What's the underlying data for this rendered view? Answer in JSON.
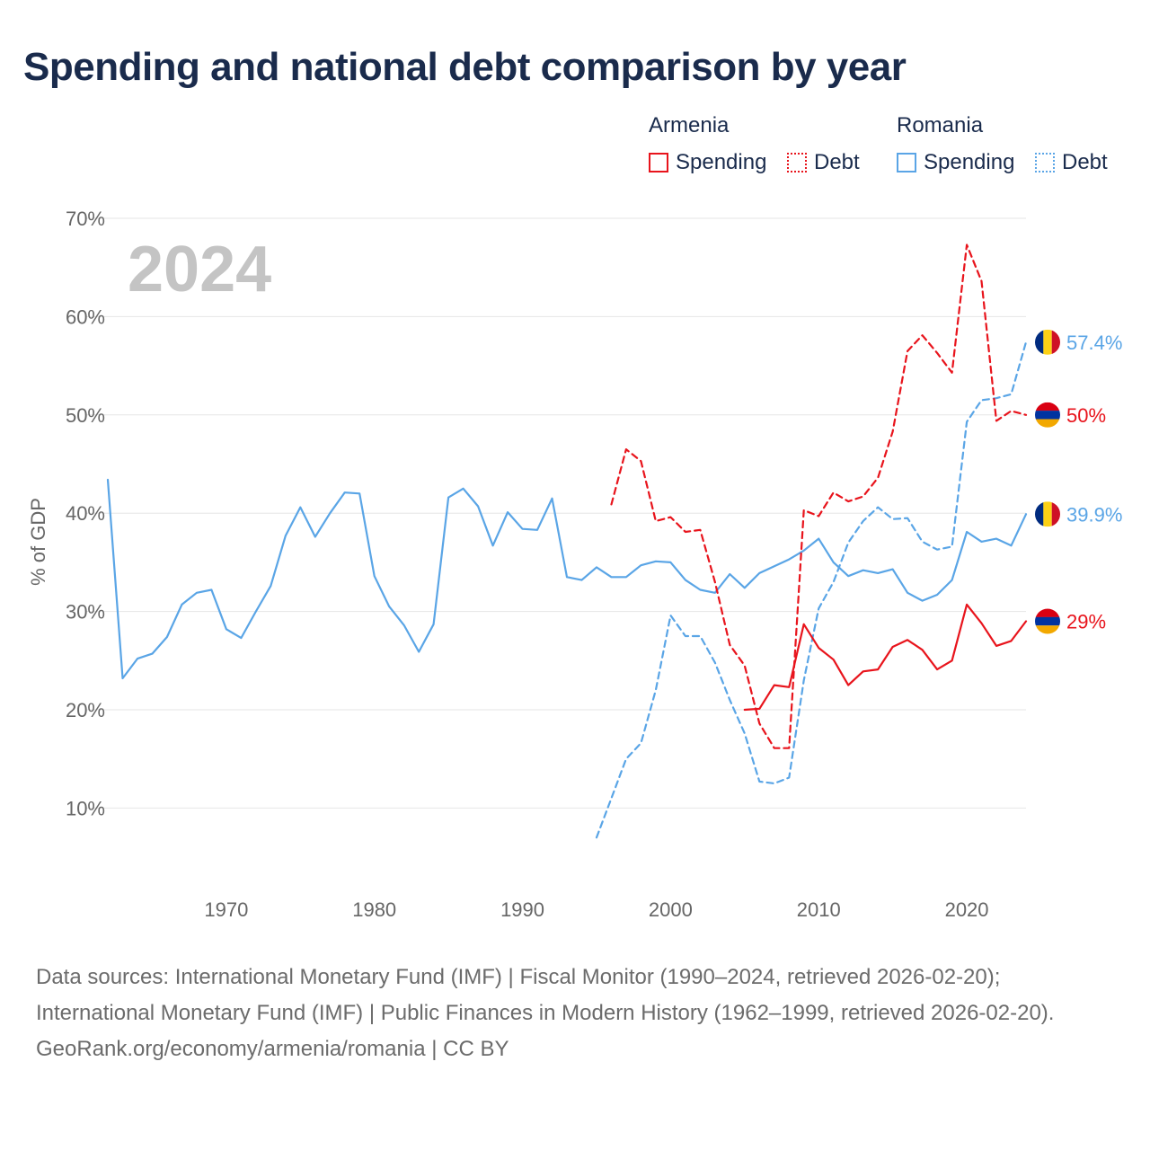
{
  "title": "Spending and national debt comparison by year",
  "legend": {
    "armenia": {
      "title": "Armenia",
      "spending": "Spending",
      "debt": "Debt"
    },
    "romania": {
      "title": "Romania",
      "spending": "Spending",
      "debt": "Debt"
    }
  },
  "footer": {
    "sources": "Data sources: International Monetary Fund (IMF) | Fiscal Monitor (1990–2024, retrieved 2026-02-20); International Monetary Fund (IMF) | Public Finances in Modern History (1962–1999, retrieved 2026-02-20).",
    "credit": "GeoRank.org/economy/armenia/romania | CC BY"
  },
  "colors": {
    "armenia": "#e8141c",
    "romania": "#5aa5e6",
    "grid": "#e6e6e6",
    "axis_text": "#666666",
    "year_watermark": "#c4c4c4"
  },
  "chart_data": {
    "type": "line",
    "title": "Spending and national debt comparison by year",
    "year_label": "2024",
    "ylabel": "% of GDP",
    "xlabel": "",
    "xlim": [
      1962,
      2024
    ],
    "ylim": [
      3,
      72
    ],
    "y_ticks": [
      10,
      20,
      30,
      40,
      50,
      60,
      70
    ],
    "y_tick_labels": [
      "10%",
      "20%",
      "30%",
      "40%",
      "50%",
      "60%",
      "70%"
    ],
    "x_ticks": [
      1970,
      1980,
      1990,
      2000,
      2010,
      2020
    ],
    "x_tick_labels": [
      "1970",
      "1980",
      "1990",
      "2000",
      "2010",
      "2020"
    ],
    "grid": true,
    "series": [
      {
        "name": "Romania Spending",
        "country": "romania",
        "style": "solid",
        "end_label": "39.9%",
        "x": [
          1962,
          1963,
          1964,
          1965,
          1966,
          1967,
          1968,
          1969,
          1970,
          1971,
          1972,
          1973,
          1974,
          1975,
          1976,
          1977,
          1978,
          1979,
          1980,
          1981,
          1982,
          1983,
          1984,
          1985,
          1986,
          1987,
          1988,
          1989,
          1990,
          1991,
          1992,
          1993,
          1994,
          1995,
          1996,
          1997,
          1998,
          1999,
          2000,
          2001,
          2002,
          2003,
          2004,
          2005,
          2006,
          2007,
          2008,
          2009,
          2010,
          2011,
          2012,
          2013,
          2014,
          2015,
          2016,
          2017,
          2018,
          2019,
          2020,
          2021,
          2022,
          2023,
          2024
        ],
        "values": [
          43.4,
          23.2,
          25.2,
          25.7,
          27.4,
          30.7,
          31.9,
          32.2,
          28.2,
          27.3,
          30.0,
          32.6,
          37.7,
          40.6,
          37.6,
          40.0,
          42.1,
          42.0,
          33.6,
          30.5,
          28.6,
          25.9,
          28.7,
          41.6,
          42.5,
          40.7,
          36.7,
          40.1,
          38.4,
          38.3,
          41.5,
          33.5,
          33.2,
          34.5,
          33.5,
          33.5,
          34.7,
          35.1,
          35.0,
          33.2,
          32.2,
          31.9,
          33.8,
          32.4,
          33.9,
          34.6,
          35.3,
          36.2,
          37.4,
          35.0,
          33.6,
          34.2,
          33.9,
          34.3,
          31.9,
          31.1,
          31.7,
          33.2,
          38.1,
          37.1,
          37.4,
          36.7,
          39.9
        ]
      },
      {
        "name": "Romania Debt",
        "country": "romania",
        "style": "dashed",
        "end_label": "57.4%",
        "x": [
          1995,
          1996,
          1997,
          1998,
          1999,
          2000,
          2001,
          2002,
          2003,
          2004,
          2005,
          2006,
          2007,
          2008,
          2009,
          2010,
          2011,
          2012,
          2013,
          2014,
          2015,
          2016,
          2017,
          2018,
          2019,
          2020,
          2021,
          2022,
          2023,
          2024
        ],
        "values": [
          7.0,
          11.0,
          15.0,
          16.6,
          22.0,
          29.6,
          27.5,
          27.5,
          24.8,
          21.0,
          17.6,
          12.7,
          12.5,
          13.1,
          23.0,
          30.3,
          33.0,
          37.0,
          39.2,
          40.6,
          39.4,
          39.5,
          37.1,
          36.3,
          36.6,
          49.3,
          51.5,
          51.7,
          52.1,
          57.4
        ]
      },
      {
        "name": "Armenia Spending",
        "country": "armenia",
        "style": "solid",
        "end_label": "29%",
        "x": [
          2005,
          2006,
          2007,
          2008,
          2009,
          2010,
          2011,
          2012,
          2013,
          2014,
          2015,
          2016,
          2017,
          2018,
          2019,
          2020,
          2021,
          2022,
          2023,
          2024
        ],
        "values": [
          20.0,
          20.1,
          22.5,
          22.3,
          28.7,
          26.3,
          25.1,
          22.5,
          23.9,
          24.1,
          26.4,
          27.1,
          26.1,
          24.1,
          25.0,
          30.7,
          28.8,
          26.5,
          27.0,
          29.0
        ]
      },
      {
        "name": "Armenia Debt",
        "country": "armenia",
        "style": "dashed",
        "end_label": "50%",
        "x": [
          1996,
          1997,
          1998,
          1999,
          2000,
          2001,
          2002,
          2003,
          2004,
          2005,
          2006,
          2007,
          2008,
          2009,
          2010,
          2011,
          2012,
          2013,
          2014,
          2015,
          2016,
          2017,
          2018,
          2019,
          2020,
          2021,
          2022,
          2023,
          2024
        ],
        "values": [
          40.9,
          46.5,
          45.3,
          39.2,
          39.6,
          38.1,
          38.3,
          33.0,
          26.6,
          24.5,
          18.6,
          16.1,
          16.1,
          40.3,
          39.7,
          42.1,
          41.2,
          41.7,
          43.6,
          48.3,
          56.5,
          58.1,
          56.3,
          54.3,
          67.3,
          63.6,
          49.4,
          50.4,
          50.0
        ]
      }
    ]
  }
}
